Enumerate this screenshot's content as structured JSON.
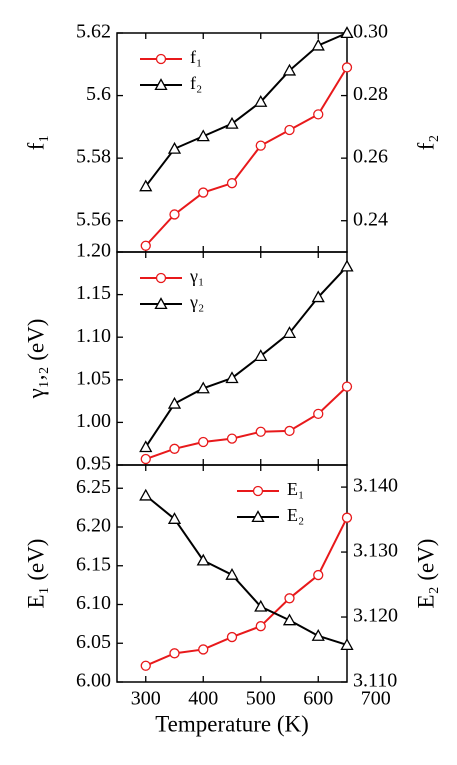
{
  "chart_data": [
    {
      "type": "line",
      "ylabel": "f₁",
      "y2label": "f₂",
      "x": [
        300,
        350,
        400,
        450,
        500,
        550,
        600,
        650
      ],
      "xlim": [
        250,
        650
      ],
      "ylim": [
        5.55,
        5.62
      ],
      "yticks": [
        5.56,
        5.58,
        5.6,
        {
          "value": 5.62,
          "label": "5.62"
        }
      ],
      "y2lim": [
        0.23,
        0.3
      ],
      "y2ticks": [
        0.24,
        0.26,
        0.28,
        {
          "value": 0.3,
          "label": "0.30"
        }
      ],
      "legend": "upper left",
      "series": [
        {
          "name": "f₁",
          "color": "#e8191b",
          "marker": "circle",
          "axis": "y",
          "values": [
            5.552,
            5.562,
            5.569,
            5.572,
            5.584,
            5.589,
            5.594,
            5.609
          ]
        },
        {
          "name": "f₂",
          "color": "#000000",
          "marker": "triangle",
          "axis": "y2",
          "values": [
            0.251,
            0.263,
            0.267,
            0.271,
            0.278,
            0.288,
            0.296,
            0.3
          ]
        }
      ]
    },
    {
      "type": "line",
      "ylabel": "γ₁,₂ (eV)",
      "x": [
        300,
        350,
        400,
        450,
        500,
        550,
        600,
        650
      ],
      "xlim": [
        250,
        650
      ],
      "ylim": [
        0.95,
        1.2
      ],
      "yticks": [
        0.95,
        {
          "value": 1.0,
          "label": "1.00"
        },
        1.05,
        {
          "value": 1.1,
          "label": "1.10"
        },
        1.15,
        {
          "value": 1.2,
          "label": "1.20"
        }
      ],
      "legend": "upper left",
      "series": [
        {
          "name": "γ₁",
          "color": "#e8191b",
          "marker": "circle",
          "axis": "y",
          "values": [
            0.957,
            0.969,
            0.977,
            0.981,
            0.989,
            0.99,
            1.01,
            1.042
          ]
        },
        {
          "name": "γ₂",
          "color": "#000000",
          "marker": "triangle",
          "axis": "y",
          "values": [
            0.971,
            1.022,
            1.04,
            1.052,
            1.078,
            1.105,
            1.147,
            1.183
          ]
        }
      ]
    },
    {
      "type": "line",
      "ylabel": "E₁ (eV)",
      "y2label": "E₂ (eV)",
      "xlabel": "Temperature (K)",
      "x": [
        300,
        350,
        400,
        450,
        500,
        550,
        600,
        650
      ],
      "xlim": [
        250,
        650
      ],
      "xticks": [
        300,
        400,
        500,
        600,
        700
      ],
      "ylim": [
        6.0,
        6.28
      ],
      "yticks": [
        {
          "value": 6.0,
          "label": "6.00"
        },
        6.05,
        {
          "value": 6.1,
          "label": "6.10"
        },
        6.15,
        {
          "value": 6.2,
          "label": "6.20"
        },
        6.25
      ],
      "y2lim": [
        3.11,
        3.1434
      ],
      "y2ticks": [
        {
          "value": 3.11,
          "label": "3.110"
        },
        {
          "value": 3.12,
          "label": "3.120"
        },
        {
          "value": 3.13,
          "label": "3.130"
        },
        {
          "value": 3.14,
          "label": "3.140"
        }
      ],
      "legend": "upper center",
      "series": [
        {
          "name": "E₁",
          "color": "#e8191b",
          "marker": "circle",
          "axis": "y",
          "values": [
            6.021,
            6.037,
            6.042,
            6.058,
            6.072,
            6.108,
            6.138,
            6.212
          ]
        },
        {
          "name": "E₂",
          "color": "#000000",
          "marker": "triangle",
          "axis": "y2",
          "values": [
            3.1387,
            3.1351,
            3.1287,
            3.1265,
            3.1216,
            3.1195,
            3.1171,
            3.1157
          ]
        }
      ]
    }
  ]
}
